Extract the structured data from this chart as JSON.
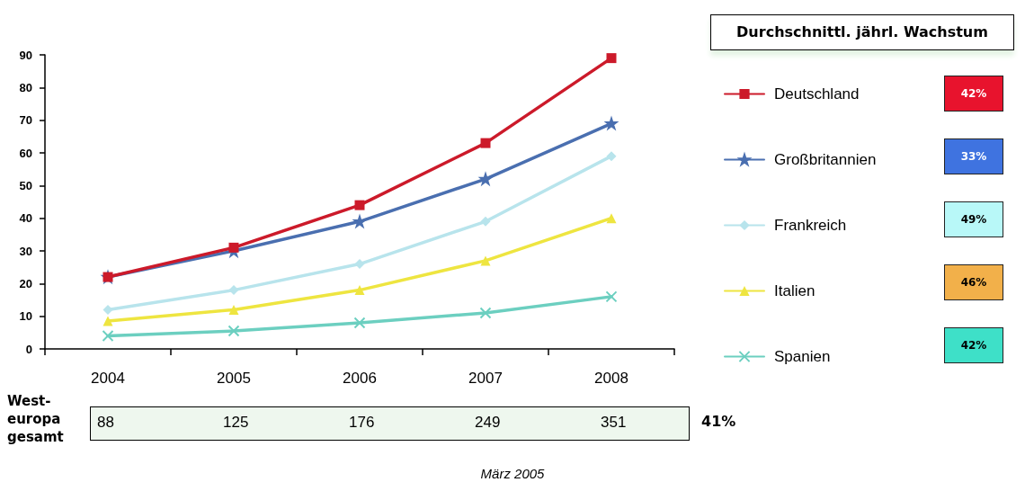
{
  "chart_data": {
    "type": "line",
    "legend_title": "Durchschnittl. jährl. Wachstum",
    "categories": [
      "2004",
      "2005",
      "2006",
      "2007",
      "2008"
    ],
    "series": [
      {
        "name": "Deutschland",
        "color": "#cc1a2a",
        "marker": "square",
        "values": [
          22,
          31,
          44,
          63,
          89
        ]
      },
      {
        "name": "Großbritannien",
        "color": "#4a6fb0",
        "marker": "star",
        "values": [
          22,
          30,
          39,
          52,
          69
        ]
      },
      {
        "name": "Frankreich",
        "color": "#b8e4ec",
        "marker": "diamond",
        "values": [
          12,
          18,
          26,
          39,
          59
        ]
      },
      {
        "name": "Italien",
        "color": "#eee540",
        "marker": "triangle",
        "values": [
          8.5,
          12,
          18,
          27,
          40
        ]
      },
      {
        "name": "Spanien",
        "color": "#6ccfc0",
        "marker": "cross",
        "values": [
          4,
          5.5,
          8,
          11,
          16
        ]
      }
    ],
    "ylim": [
      0,
      90
    ],
    "yticks": [
      0,
      10,
      20,
      30,
      40,
      50,
      60,
      70,
      80,
      90
    ],
    "grid": false,
    "legend": "right",
    "annotations": [
      "42%",
      "33%",
      "49%",
      "46%",
      "42%",
      "West-europa gesamt",
      "88",
      "125",
      "176",
      "249",
      "351",
      "41%",
      "März 2005"
    ]
  }
}
